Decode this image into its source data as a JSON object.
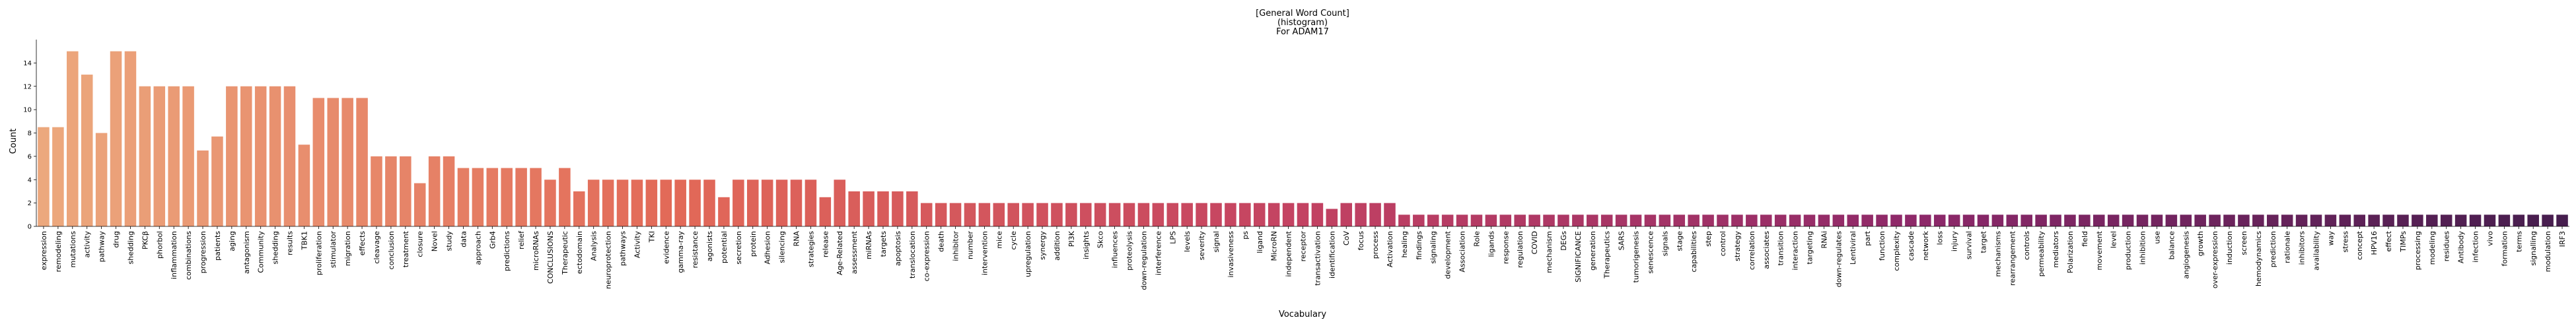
{
  "chart_data": {
    "type": "bar",
    "title_lines": [
      "[General Word Count]",
      "(histogram)",
      "For ADAM17"
    ],
    "xlabel": "Vocabulary",
    "ylabel": "Count",
    "ylim": [
      0,
      16
    ],
    "yticks": [
      0,
      2,
      4,
      6,
      8,
      10,
      12,
      14
    ],
    "grid": false,
    "palette": "flare",
    "categories": [
      "expression",
      "remodeling",
      "mutations",
      "activity",
      "pathway",
      "drug",
      "shedding",
      "PKCβ",
      "phorbol",
      "inflammation",
      "combinations",
      "progression",
      "patients",
      "aging",
      "antagonism",
      "Community",
      "shedding",
      "results",
      "TBK1",
      "proliferation",
      "stimulator",
      "migration",
      "effects",
      "cleavage",
      "conclusion",
      "treatment",
      "closure",
      "Novel",
      "study",
      "data",
      "approach",
      "Grb4",
      "predictions",
      "relief",
      "microRNAs",
      "CONCLUSIONS",
      "Therapeutic",
      "ectodomain",
      "Analysis",
      "neuroprotection",
      "pathways",
      "Activity",
      "TKI",
      "evidence",
      "gamma-ray",
      "resistance",
      "agonists",
      "potential",
      "secretion",
      "protein",
      "Adhesion",
      "silencing",
      "RNA",
      "strategies",
      "release",
      "Age-Related",
      "assessment",
      "miRNAs",
      "targets",
      "apoptosis",
      "translocation",
      "co-expression",
      "death",
      "inhibitor",
      "number",
      "intervention",
      "mice",
      "cycle",
      "upregulation",
      "synergy",
      "addition",
      "PI3K",
      "insights",
      "Skco",
      "influences",
      "proteolysis",
      "down-regulation",
      "interference",
      "LPS",
      "levels",
      "severity",
      "signal",
      "invasiveness",
      "ps",
      "ligand",
      "MicroRN",
      "independent",
      "receptor",
      "transactivation",
      "identification",
      "CoV",
      "focus",
      "process",
      "Activation",
      "healing",
      "findings",
      "signaling",
      "development",
      "Association",
      "Role",
      "ligands",
      "response",
      "regulation",
      "COVID",
      "mechanism",
      "DEGs",
      "SIGNIFICANCE",
      "generation",
      "Therapeutics",
      "SARS",
      "tumorigenesis",
      "senescence",
      "signals",
      "stage",
      "capabilities",
      "step",
      "control",
      "strategy",
      "correlation",
      "associates",
      "transition",
      "interaction",
      "targeting",
      "RNAi",
      "down-regulates",
      "Lentiviral",
      "part",
      "function",
      "complexity",
      "cascade",
      "network",
      "loss",
      "injury",
      "survival",
      "target",
      "mechanisms",
      "rearrangement",
      "controls",
      "permeability",
      "mediators",
      "Polarization",
      "field",
      "movement",
      "level",
      "production",
      "inhibition",
      "use",
      "balance",
      "angiogenesis",
      "growth",
      "over-expression",
      "induction",
      "screen",
      "hemodynamics",
      "prediction",
      "rationale",
      "inhibitors",
      "availability",
      "way",
      "stress",
      "concept",
      "HPV16",
      "effect",
      "TIMPs",
      "processing",
      "modeling",
      "residues",
      "Antibody",
      "infection",
      "vivo",
      "formation",
      "terms",
      "signalling",
      "modulation",
      "IRF3"
    ],
    "values": [
      8.5,
      8.5,
      15,
      13,
      8,
      15,
      15,
      12,
      12,
      12,
      12,
      6.5,
      7.7,
      12,
      12,
      12,
      12,
      12,
      7,
      11,
      11,
      11,
      11,
      6,
      6,
      6,
      3.7,
      6,
      6,
      5,
      5,
      5,
      5,
      5,
      5,
      4,
      5,
      3,
      4,
      4,
      4,
      4,
      4,
      4,
      4,
      4,
      4,
      2.5,
      4,
      4,
      4,
      4,
      4,
      4,
      2.5,
      4,
      3,
      3,
      3,
      3,
      3,
      2,
      2,
      2,
      2,
      2,
      2,
      2,
      2,
      2,
      2,
      2,
      2,
      2,
      2,
      2,
      2,
      2,
      2,
      2,
      2,
      2,
      2,
      2,
      2,
      2,
      2,
      2,
      2,
      1.5,
      2,
      2,
      2,
      2,
      1,
      1,
      1,
      1,
      1,
      1,
      1,
      1,
      1,
      1,
      1,
      1,
      1,
      1,
      1,
      1,
      1,
      1,
      1,
      1,
      1,
      1,
      1,
      1,
      1,
      1,
      1,
      1,
      1,
      1,
      1,
      1,
      1,
      1,
      1,
      1,
      1,
      1,
      1,
      1,
      1,
      1,
      1,
      1,
      1,
      1,
      1,
      1,
      1,
      1,
      1,
      1,
      1,
      1,
      1,
      1,
      1,
      1,
      1,
      1,
      1,
      1,
      1,
      1,
      1,
      1,
      1,
      1,
      1,
      1,
      1,
      1,
      1,
      1,
      1,
      1,
      1,
      1,
      1,
      1,
      1
    ]
  }
}
